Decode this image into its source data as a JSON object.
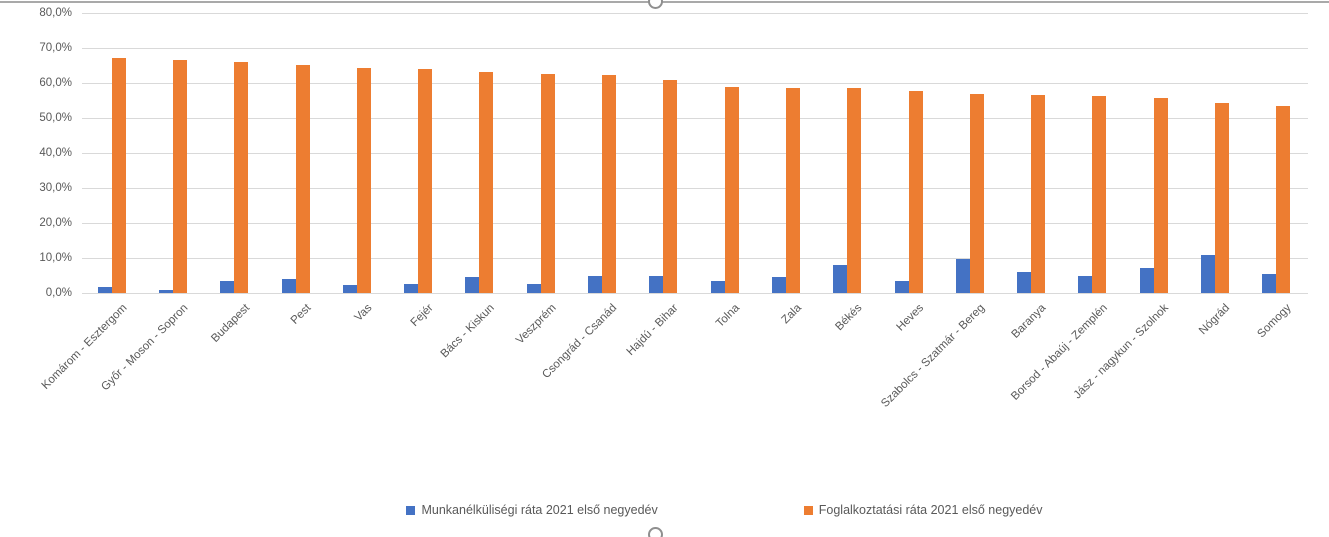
{
  "chart_data": {
    "type": "bar",
    "title": "",
    "xlabel": "",
    "ylabel": "",
    "categories": [
      "Komárom - Esztergom",
      "Győr - Moson - Sopron",
      "Budapest",
      "Pest",
      "Vas",
      "Fejér",
      "Bács - Kiskun",
      "Veszprém",
      "Csongrád - Csanád",
      "Hajdú - Bihar",
      "Tolna",
      "Zala",
      "Békés",
      "Heves",
      "Szabolcs - Szatmár - Bereg",
      "Baranya",
      "Borsod - Abaúj - Zemplén",
      "Jász - nagykun - Szolnok",
      "Nógrád",
      "Somogy"
    ],
    "series": [
      {
        "name": "Munkanélküliségi ráta 2021 első negyedév",
        "color": "#4472c4",
        "values": [
          1.8,
          1.0,
          3.5,
          3.9,
          2.4,
          2.5,
          4.7,
          2.7,
          5.0,
          5.0,
          3.5,
          4.7,
          8.1,
          3.4,
          9.6,
          6.0,
          4.9,
          7.1,
          11.0,
          5.5
        ]
      },
      {
        "name": "Foglalkoztatási ráta 2021 első negyedév",
        "color": "#ed7d31",
        "values": [
          67.2,
          66.6,
          66.0,
          65.1,
          64.2,
          63.9,
          63.1,
          62.5,
          62.4,
          60.8,
          58.9,
          58.6,
          58.5,
          57.7,
          56.9,
          56.6,
          56.2,
          55.7,
          54.4,
          53.5
        ]
      }
    ],
    "ylim": [
      0,
      80
    ],
    "ytick_step": 10,
    "ytick_labels": [
      "80,0%",
      "70,0%",
      "60,0%",
      "50,0%",
      "40,0%",
      "30,0%",
      "20,0%",
      "10,0%",
      "0,0%"
    ],
    "grid": true,
    "legend_position": "bottom"
  },
  "colors": {
    "gridline": "#d9d9d9",
    "axis_text": "#595959",
    "chart_border": "#a9a9a9",
    "series_unemployment": "#4472c4",
    "series_employment": "#ed7d31"
  }
}
